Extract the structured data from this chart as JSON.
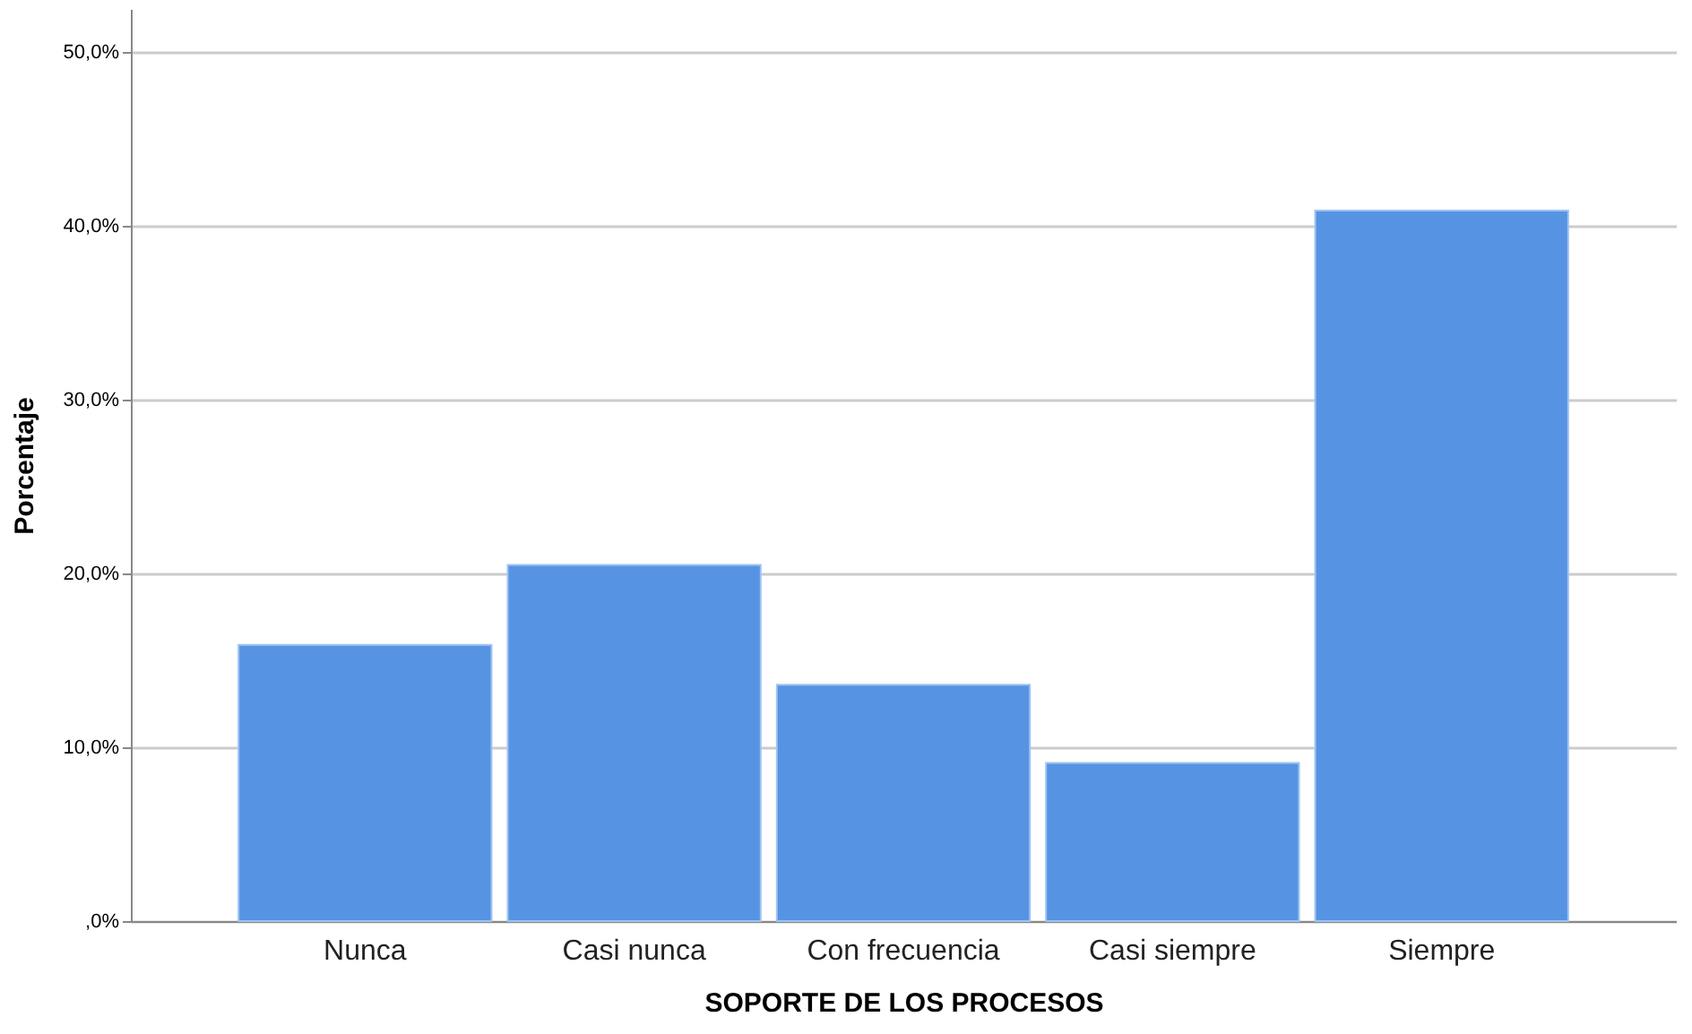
{
  "chart_data": {
    "type": "bar",
    "xlabel": "SOPORTE DE LOS PROCESOS",
    "ylabel": "Porcentaje",
    "categories": [
      "Nunca",
      "Casi nunca",
      "Con frecuencia",
      "Casi siempre",
      "Siempre"
    ],
    "values": [
      15.9,
      20.5,
      13.6,
      9.1,
      40.9
    ],
    "color": "#5694e3",
    "ylim": [
      0,
      52.5
    ],
    "yticks": [
      {
        "value": 0,
        "label": ",0%"
      },
      {
        "value": 10,
        "label": "10,0%"
      },
      {
        "value": 20,
        "label": "20,0%"
      },
      {
        "value": 30,
        "label": "30,0%"
      },
      {
        "value": 40,
        "label": "40,0%"
      },
      {
        "value": 50,
        "label": "50,0%"
      }
    ],
    "grid": "y"
  }
}
